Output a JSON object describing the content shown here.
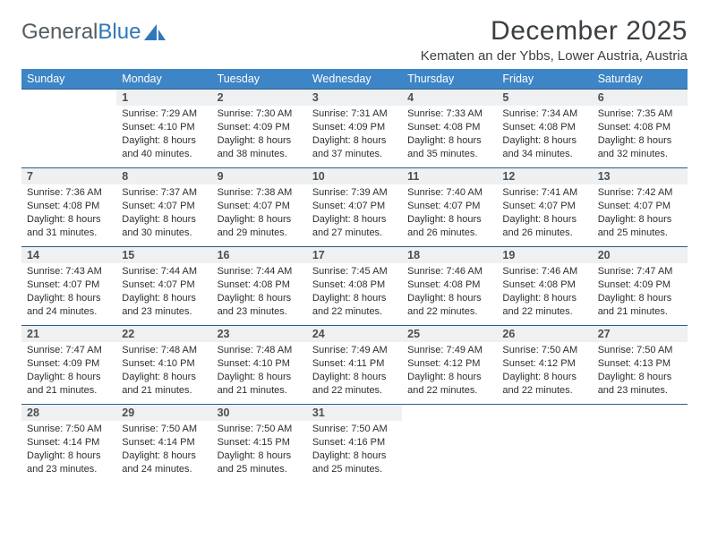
{
  "brand": {
    "part1": "General",
    "part2": "Blue"
  },
  "title": "December 2025",
  "location": "Kematen an der Ybbs, Lower Austria, Austria",
  "colors": {
    "header_bg": "#3d85c6",
    "header_text": "#ffffff",
    "daynum_bg": "#eef0f1",
    "border": "#2f5d8a",
    "brand_gray": "#555c61",
    "brand_blue": "#2f78bb"
  },
  "weekdays": [
    "Sunday",
    "Monday",
    "Tuesday",
    "Wednesday",
    "Thursday",
    "Friday",
    "Saturday"
  ],
  "weeks": [
    [
      null,
      {
        "n": "1",
        "sr": "7:29 AM",
        "ss": "4:10 PM",
        "dl": "8 hours and 40 minutes."
      },
      {
        "n": "2",
        "sr": "7:30 AM",
        "ss": "4:09 PM",
        "dl": "8 hours and 38 minutes."
      },
      {
        "n": "3",
        "sr": "7:31 AM",
        "ss": "4:09 PM",
        "dl": "8 hours and 37 minutes."
      },
      {
        "n": "4",
        "sr": "7:33 AM",
        "ss": "4:08 PM",
        "dl": "8 hours and 35 minutes."
      },
      {
        "n": "5",
        "sr": "7:34 AM",
        "ss": "4:08 PM",
        "dl": "8 hours and 34 minutes."
      },
      {
        "n": "6",
        "sr": "7:35 AM",
        "ss": "4:08 PM",
        "dl": "8 hours and 32 minutes."
      }
    ],
    [
      {
        "n": "7",
        "sr": "7:36 AM",
        "ss": "4:08 PM",
        "dl": "8 hours and 31 minutes."
      },
      {
        "n": "8",
        "sr": "7:37 AM",
        "ss": "4:07 PM",
        "dl": "8 hours and 30 minutes."
      },
      {
        "n": "9",
        "sr": "7:38 AM",
        "ss": "4:07 PM",
        "dl": "8 hours and 29 minutes."
      },
      {
        "n": "10",
        "sr": "7:39 AM",
        "ss": "4:07 PM",
        "dl": "8 hours and 27 minutes."
      },
      {
        "n": "11",
        "sr": "7:40 AM",
        "ss": "4:07 PM",
        "dl": "8 hours and 26 minutes."
      },
      {
        "n": "12",
        "sr": "7:41 AM",
        "ss": "4:07 PM",
        "dl": "8 hours and 26 minutes."
      },
      {
        "n": "13",
        "sr": "7:42 AM",
        "ss": "4:07 PM",
        "dl": "8 hours and 25 minutes."
      }
    ],
    [
      {
        "n": "14",
        "sr": "7:43 AM",
        "ss": "4:07 PM",
        "dl": "8 hours and 24 minutes."
      },
      {
        "n": "15",
        "sr": "7:44 AM",
        "ss": "4:07 PM",
        "dl": "8 hours and 23 minutes."
      },
      {
        "n": "16",
        "sr": "7:44 AM",
        "ss": "4:08 PM",
        "dl": "8 hours and 23 minutes."
      },
      {
        "n": "17",
        "sr": "7:45 AM",
        "ss": "4:08 PM",
        "dl": "8 hours and 22 minutes."
      },
      {
        "n": "18",
        "sr": "7:46 AM",
        "ss": "4:08 PM",
        "dl": "8 hours and 22 minutes."
      },
      {
        "n": "19",
        "sr": "7:46 AM",
        "ss": "4:08 PM",
        "dl": "8 hours and 22 minutes."
      },
      {
        "n": "20",
        "sr": "7:47 AM",
        "ss": "4:09 PM",
        "dl": "8 hours and 21 minutes."
      }
    ],
    [
      {
        "n": "21",
        "sr": "7:47 AM",
        "ss": "4:09 PM",
        "dl": "8 hours and 21 minutes."
      },
      {
        "n": "22",
        "sr": "7:48 AM",
        "ss": "4:10 PM",
        "dl": "8 hours and 21 minutes."
      },
      {
        "n": "23",
        "sr": "7:48 AM",
        "ss": "4:10 PM",
        "dl": "8 hours and 21 minutes."
      },
      {
        "n": "24",
        "sr": "7:49 AM",
        "ss": "4:11 PM",
        "dl": "8 hours and 22 minutes."
      },
      {
        "n": "25",
        "sr": "7:49 AM",
        "ss": "4:12 PM",
        "dl": "8 hours and 22 minutes."
      },
      {
        "n": "26",
        "sr": "7:50 AM",
        "ss": "4:12 PM",
        "dl": "8 hours and 22 minutes."
      },
      {
        "n": "27",
        "sr": "7:50 AM",
        "ss": "4:13 PM",
        "dl": "8 hours and 23 minutes."
      }
    ],
    [
      {
        "n": "28",
        "sr": "7:50 AM",
        "ss": "4:14 PM",
        "dl": "8 hours and 23 minutes."
      },
      {
        "n": "29",
        "sr": "7:50 AM",
        "ss": "4:14 PM",
        "dl": "8 hours and 24 minutes."
      },
      {
        "n": "30",
        "sr": "7:50 AM",
        "ss": "4:15 PM",
        "dl": "8 hours and 25 minutes."
      },
      {
        "n": "31",
        "sr": "7:50 AM",
        "ss": "4:16 PM",
        "dl": "8 hours and 25 minutes."
      },
      null,
      null,
      null
    ]
  ],
  "labels": {
    "sunrise": "Sunrise:",
    "sunset": "Sunset:",
    "daylight": "Daylight:"
  }
}
